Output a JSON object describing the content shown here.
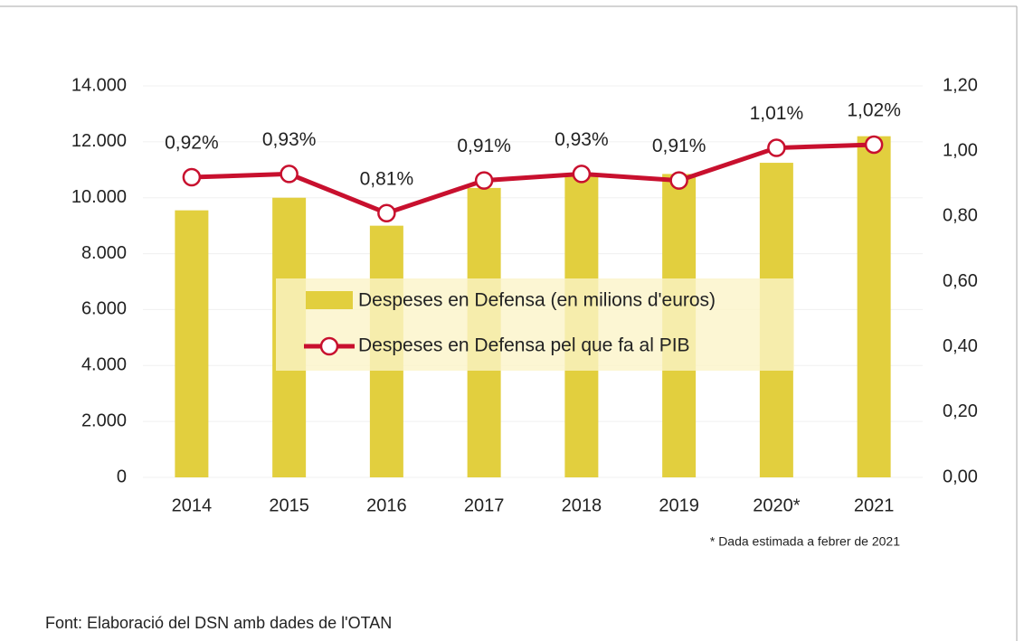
{
  "chart_data": {
    "type": "bar_line",
    "categories": [
      "2014",
      "2015",
      "2016",
      "2017",
      "2018",
      "2019",
      "2020*",
      "2021"
    ],
    "series": [
      {
        "name": "Despeses en Defensa (en milions d'euros)",
        "type": "bar",
        "color": "#e2cf3e",
        "values": [
          9550,
          10000,
          9000,
          10350,
          10800,
          10850,
          11250,
          12200
        ]
      },
      {
        "name": "Despeses en Defensa pel que fa al PIB",
        "type": "line",
        "axis": "y2",
        "color": "#c8102e",
        "values": [
          0.92,
          0.93,
          0.81,
          0.91,
          0.93,
          0.91,
          1.01,
          1.02
        ],
        "value_labels": [
          "0,92%",
          "0,93%",
          "0,81%",
          "0,91%",
          "0,93%",
          "0,91%",
          "1,01%",
          "1,02%"
        ]
      }
    ],
    "ylim": [
      0,
      14000
    ],
    "yticks": [
      0,
      {
        "value": 2000,
        "label": "2.000"
      },
      {
        "value": 4000,
        "label": "4.000"
      },
      {
        "value": 6000,
        "label": "6.000"
      },
      {
        "value": 8000,
        "label": "8.000"
      },
      {
        "value": 10000,
        "label": "10.000"
      },
      {
        "value": 12000,
        "label": "12.000"
      },
      {
        "value": 14000,
        "label": "14.000"
      }
    ],
    "y2lim": [
      0,
      1.2
    ],
    "y2ticks": [
      {
        "value": 0,
        "label": "0,00"
      },
      {
        "value": 0.2,
        "label": "0,20"
      },
      {
        "value": 0.4,
        "label": "0,40"
      },
      {
        "value": 0.6,
        "label": "0,60"
      },
      {
        "value": 0.8,
        "label": "0,80"
      },
      {
        "value": 1.0,
        "label": "1,00"
      },
      {
        "value": 1.2,
        "label": "1,20"
      }
    ],
    "grid": true,
    "legend": "center",
    "footnote": "* Dada estimada a febrer de 2021",
    "source": "Font: Elaboració del DSN amb dades de l'OTAN"
  }
}
